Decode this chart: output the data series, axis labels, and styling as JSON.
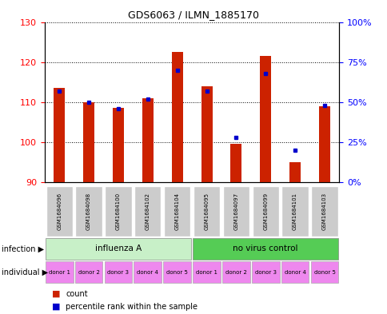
{
  "title": "GDS6063 / ILMN_1885170",
  "samples": [
    "GSM1684096",
    "GSM1684098",
    "GSM1684100",
    "GSM1684102",
    "GSM1684104",
    "GSM1684095",
    "GSM1684097",
    "GSM1684099",
    "GSM1684101",
    "GSM1684103"
  ],
  "counts": [
    113.5,
    110.0,
    108.5,
    111.0,
    122.5,
    114.0,
    99.5,
    121.5,
    95.0,
    109.0
  ],
  "percentiles": [
    57,
    50,
    46,
    52,
    70,
    57,
    28,
    68,
    20,
    48
  ],
  "ylim_left": [
    90,
    130
  ],
  "ylim_right": [
    0,
    100
  ],
  "yticks_left": [
    90,
    100,
    110,
    120,
    130
  ],
  "yticks_right": [
    0,
    25,
    50,
    75,
    100
  ],
  "ytick_labels_right": [
    "0%",
    "25%",
    "50%",
    "75%",
    "100%"
  ],
  "infection_groups": [
    {
      "label": "influenza A",
      "start": 0,
      "end": 5,
      "color": "#c8f0c8"
    },
    {
      "label": "no virus control",
      "start": 5,
      "end": 10,
      "color": "#55cc55"
    }
  ],
  "donors": [
    "donor 1",
    "donor 2",
    "donor 3",
    "donor 4",
    "donor 5",
    "donor 1",
    "donor 2",
    "donor 3",
    "donor 4",
    "donor 5"
  ],
  "donor_color": "#ee88ee",
  "bar_color": "#cc2200",
  "percentile_color": "#0000cc",
  "sample_box_color": "#cccccc",
  "plot_bg": "#ffffff",
  "infection_label": "infection",
  "individual_label": "individual",
  "legend_count": "count",
  "legend_percentile": "percentile rank within the sample"
}
